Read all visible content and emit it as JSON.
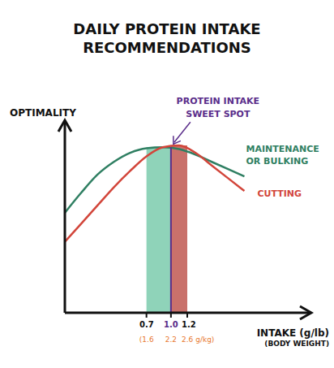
{
  "chart_data": {
    "type": "line",
    "title": "DAILY PROTEIN INTAKE RECOMMENDATIONS",
    "y_label": "OPTIMALITY",
    "x_label": "INTAKE (g/lb)",
    "x_sublabel": "(BODY WEIGHT)",
    "x": [
      -0.3,
      -0.1,
      0.1,
      0.3,
      0.5,
      0.7,
      0.9,
      1.1,
      1.3,
      1.5,
      1.7,
      1.9
    ],
    "series": [
      {
        "name": "MAINTENANCE OR BULKING",
        "color": "#2f7f62",
        "values": [
          5.5,
          6.6,
          7.6,
          8.3,
          8.8,
          9.05,
          9.1,
          9.0,
          8.7,
          8.3,
          7.9,
          7.5
        ]
      },
      {
        "name": "CUTTING",
        "color": "#d2453a",
        "values": [
          3.9,
          4.9,
          5.9,
          6.9,
          7.8,
          8.6,
          9.1,
          9.2,
          8.8,
          8.1,
          7.4,
          6.7
        ]
      }
    ],
    "xlim": [
      -0.3,
      2.7
    ],
    "xticks": [
      0.7,
      {
        "value": 1.0,
        "label": "1.0"
      },
      1.2
    ],
    "xtick_sublabels": [
      "(1.6",
      "2.2",
      "2.6 g/kg)"
    ],
    "xtick_sublabel_color": "#e8772e",
    "ylim": [
      0,
      10.5
    ],
    "tick_labels": "x",
    "grid": false,
    "bands": [
      {
        "x0": 0.7,
        "x1": 1.0,
        "y": 9.1,
        "color": "#8fd3b9"
      },
      {
        "x0": 1.0,
        "x1": 1.2,
        "y": 9.2,
        "color": "#c9716b"
      }
    ],
    "annotation": {
      "text": "PROTEIN INTAKE SWEET SPOT",
      "x": 1.0,
      "y": 9.1,
      "color": "#5a2d8a"
    }
  }
}
